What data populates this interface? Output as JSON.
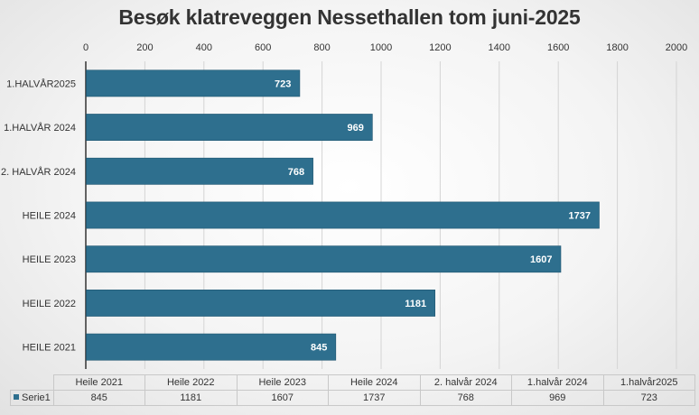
{
  "chart_data": {
    "type": "bar",
    "orientation": "horizontal",
    "title": "Besøk klatreveggen Nessethallen tom juni-2025",
    "xlabel": "",
    "ylabel": "",
    "xlim": [
      0,
      2000
    ],
    "x_ticks": [
      0,
      200,
      400,
      600,
      800,
      1000,
      1200,
      1400,
      1600,
      1800,
      2000
    ],
    "x_axis_position": "top",
    "grid": true,
    "categories": [
      "1.HALVÅR2025",
      "1.HALVÅR 2024",
      "2. HALVÅR 2024",
      "HEILE  2024",
      "HEILE 2023",
      "HEILE 2022",
      "HEILE 2021"
    ],
    "values": [
      723,
      969,
      768,
      1737,
      1607,
      1181,
      845
    ],
    "series": [
      {
        "name": "Serie1",
        "values": [
          723,
          969,
          768,
          1737,
          1607,
          1181,
          845
        ]
      }
    ],
    "data_labels": true,
    "bar_color": "#2e6f8e",
    "data_table": {
      "headers": [
        "Heile 2021",
        "Heile 2022",
        "Heile 2023",
        "Heile  2024",
        "2. halvår 2024",
        "1.halvår 2024",
        "1.halvår2025"
      ],
      "series_name": "Serie1",
      "values": [
        "845",
        "1181",
        "1607",
        "1737",
        "768",
        "969",
        "723"
      ]
    }
  }
}
